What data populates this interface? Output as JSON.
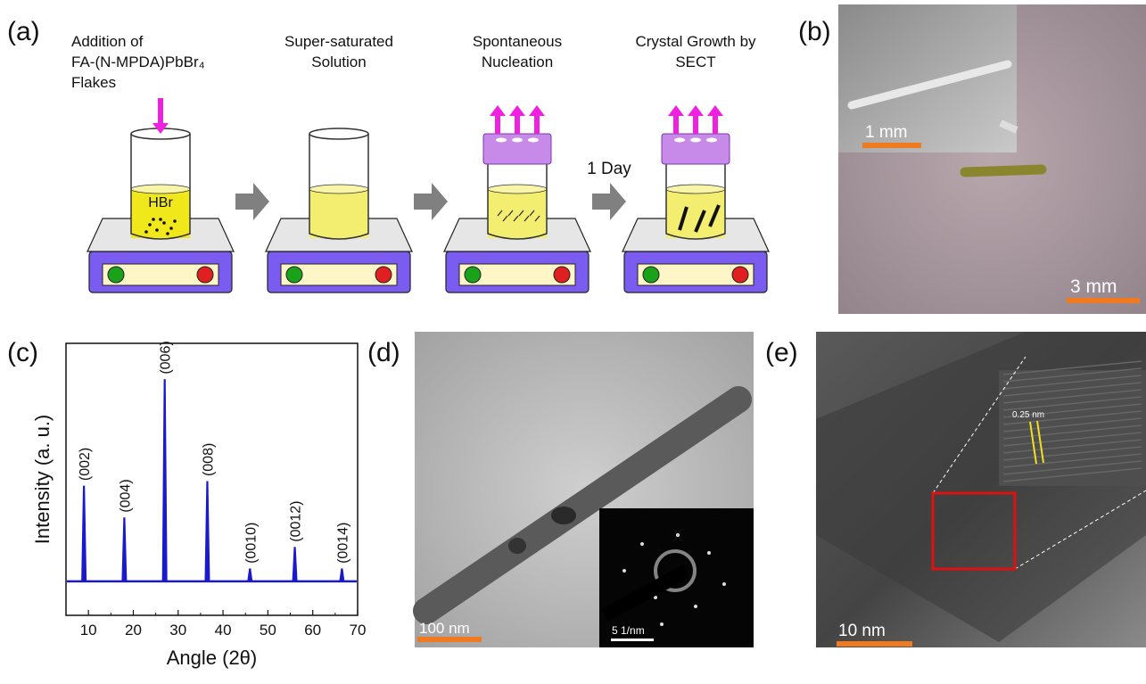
{
  "panel_a": {
    "label": "(a)",
    "steps": [
      {
        "lines": [
          "Addition of",
          "FA-(N-MPDA)PbBr₄",
          "Flakes"
        ]
      },
      {
        "lines": [
          "Super-saturated",
          "Solution"
        ]
      },
      {
        "lines": [
          "Spontaneous",
          "Nucleation"
        ]
      },
      {
        "lines": [
          "Crystal Growth by",
          "SECT"
        ]
      }
    ],
    "solvent": "HBr",
    "arrow_note": "1 Day"
  },
  "panel_b": {
    "label": "(b)",
    "inset_scale": "1 mm",
    "scale": "3 mm"
  },
  "chart_data": {
    "type": "spectrum",
    "label": "(c)",
    "x_label": "Angle (2θ)",
    "y_label": "Intensity (a. u.)",
    "x": [
      9,
      18,
      27,
      36.5,
      46,
      56,
      66.5
    ],
    "values": [
      0.42,
      0.28,
      0.89,
      0.44,
      0.055,
      0.15,
      0.055
    ],
    "peak_labels": [
      "(002)",
      "(004)",
      "(006)",
      "(008)",
      "(0010)",
      "(0012)",
      "(0014)"
    ],
    "color": "#1a1acc",
    "xlim": [
      5,
      70
    ],
    "xticks": [
      10,
      20,
      30,
      40,
      50,
      60,
      70
    ],
    "ylim": [
      -0.15,
      1.05
    ]
  },
  "panel_d": {
    "label": "(d)",
    "scale": "100 nm",
    "inset_scale": "5 1/nm"
  },
  "panel_e": {
    "label": "(e)",
    "scale": "10 nm",
    "spacing": "0.25 nm"
  }
}
